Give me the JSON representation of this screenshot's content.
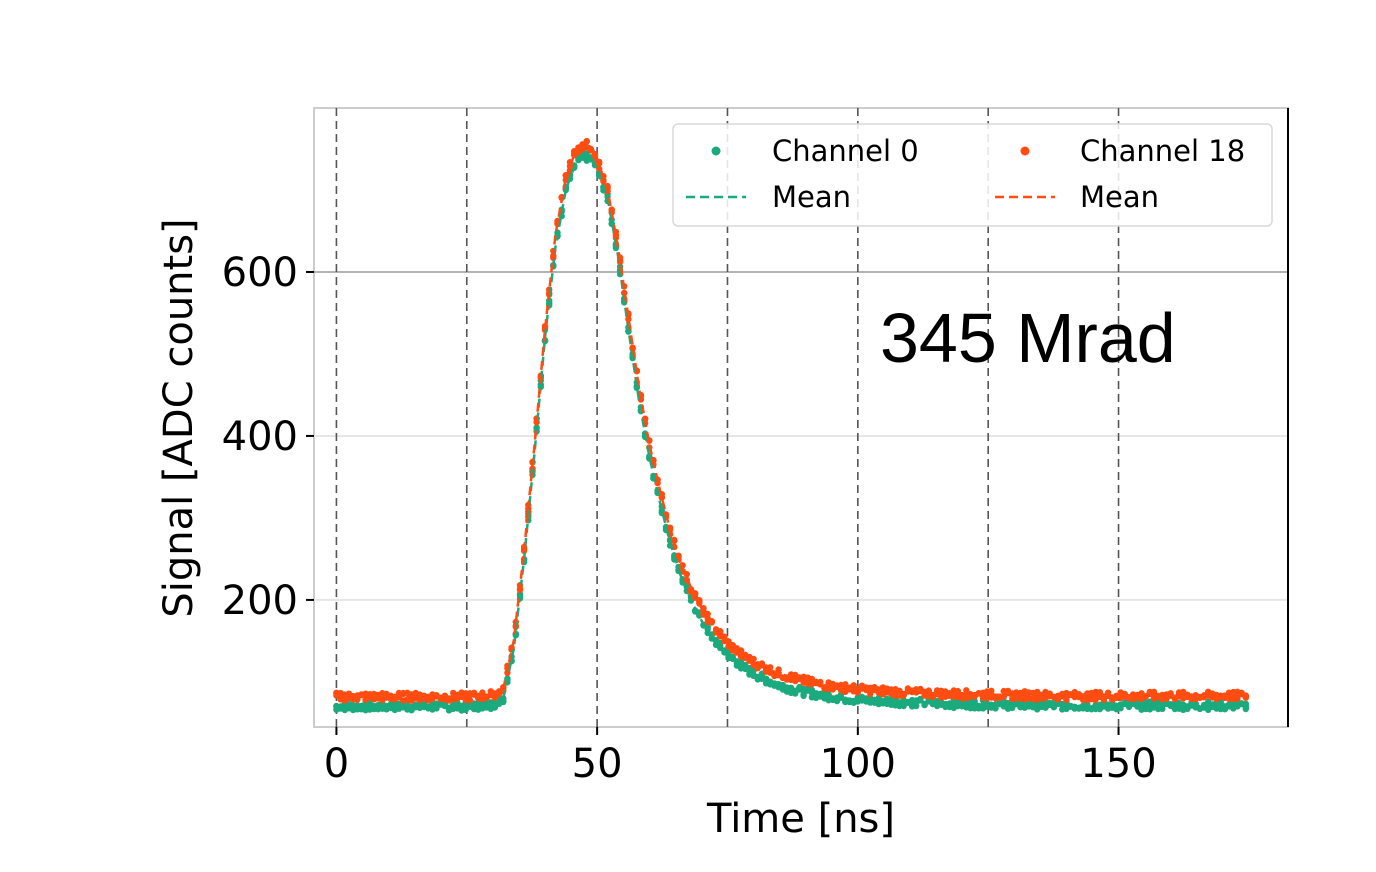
{
  "chart_data": {
    "type": "scatter",
    "title": "",
    "xlabel": "Time [ns]",
    "ylabel": "Signal [ADC counts]",
    "xlim": [
      -4.3,
      182.5
    ],
    "ylim": [
      45,
      800
    ],
    "xticks": [
      0,
      50,
      100,
      150
    ],
    "xtick_labels": [
      "0",
      "50",
      "100",
      "150"
    ],
    "yticks": [
      200,
      400,
      600
    ],
    "ytick_labels": [
      "200",
      "400",
      "600"
    ],
    "vertical_dashed_lines_x": [
      0,
      25,
      50,
      75,
      100,
      125,
      150
    ],
    "grid": "horizontal",
    "legend": {
      "placement": "top-right",
      "entries": [
        "Channel 0",
        "Channel 18",
        "Mean",
        "Mean"
      ]
    },
    "annotation": "345 Mrad",
    "colors": {
      "channel0": "#1aaa7e",
      "channel18": "#ff4d12"
    },
    "x": [
      0,
      25,
      30,
      32,
      34,
      36,
      38,
      40,
      42,
      44,
      46,
      48,
      49,
      50,
      52,
      54,
      56,
      58,
      60,
      62,
      64,
      66,
      68,
      70,
      72,
      74,
      76,
      78,
      80,
      84,
      88,
      92,
      96,
      100,
      110,
      120,
      130,
      140,
      150,
      160,
      175
    ],
    "series": [
      {
        "name": "Channel 0",
        "values": [
          70,
          70,
          72,
          80,
          140,
          250,
          380,
          520,
          630,
          700,
          735,
          740,
          738,
          725,
          690,
          620,
          530,
          445,
          375,
          320,
          270,
          230,
          200,
          175,
          155,
          140,
          128,
          118,
          110,
          98,
          90,
          85,
          81,
          78,
          75,
          73,
          72,
          71,
          71,
          71,
          71
        ]
      },
      {
        "name": "Channel 18",
        "values": [
          82,
          82,
          84,
          92,
          150,
          260,
          390,
          530,
          645,
          715,
          750,
          755,
          752,
          738,
          700,
          630,
          545,
          460,
          390,
          335,
          285,
          245,
          215,
          190,
          170,
          155,
          142,
          132,
          124,
          112,
          104,
          98,
          94,
          91,
          87,
          85,
          84,
          83,
          83,
          83,
          83
        ]
      }
    ]
  }
}
